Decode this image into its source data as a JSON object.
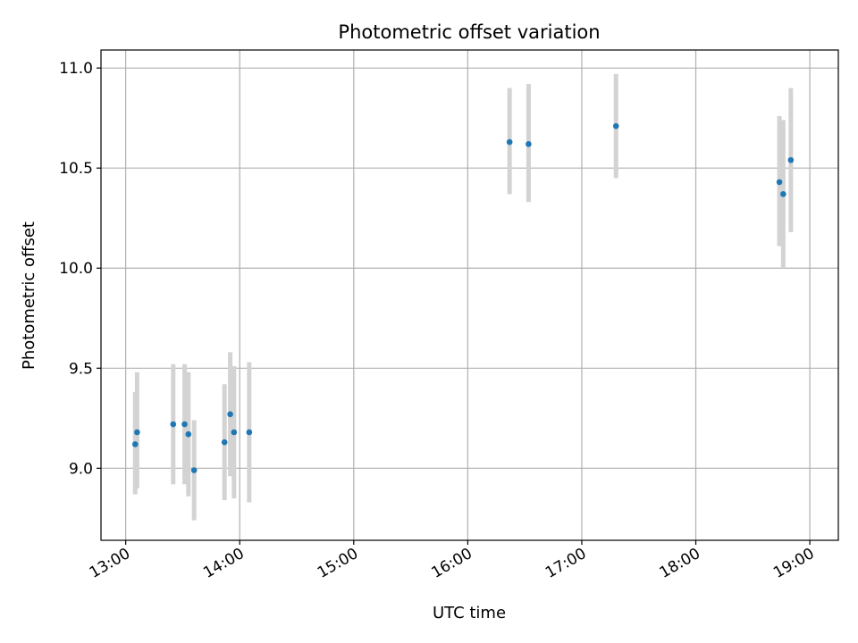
{
  "chart_data": {
    "type": "scatter",
    "title": "Photometric offset variation",
    "xlabel": "UTC time",
    "ylabel": "Photometric offset",
    "x_ticks": [
      "13:00",
      "14:00",
      "15:00",
      "16:00",
      "17:00",
      "18:00",
      "19:00"
    ],
    "y_ticks": [
      "9.0",
      "9.5",
      "10.0",
      "10.5",
      "11.0"
    ],
    "xlim": [
      "12:47",
      "19:15"
    ],
    "ylim": [
      8.64,
      11.09
    ],
    "grid": true,
    "error_bars": true,
    "series": [
      {
        "points": [
          {
            "x": "13:05",
            "y": 9.12,
            "ylow": 8.87,
            "yhigh": 9.38
          },
          {
            "x": "13:06",
            "y": 9.18,
            "ylow": 8.9,
            "yhigh": 9.48
          },
          {
            "x": "13:25",
            "y": 9.22,
            "ylow": 8.92,
            "yhigh": 9.52
          },
          {
            "x": "13:31",
            "y": 9.22,
            "ylow": 8.92,
            "yhigh": 9.52
          },
          {
            "x": "13:33",
            "y": 9.17,
            "ylow": 8.86,
            "yhigh": 9.48
          },
          {
            "x": "13:36",
            "y": 8.99,
            "ylow": 8.74,
            "yhigh": 9.24
          },
          {
            "x": "13:52",
            "y": 9.13,
            "ylow": 8.84,
            "yhigh": 9.42
          },
          {
            "x": "13:55",
            "y": 9.27,
            "ylow": 8.96,
            "yhigh": 9.58
          },
          {
            "x": "13:57",
            "y": 9.18,
            "ylow": 8.85,
            "yhigh": 9.51
          },
          {
            "x": "14:05",
            "y": 9.18,
            "ylow": 8.83,
            "yhigh": 9.53
          },
          {
            "x": "16:22",
            "y": 10.63,
            "ylow": 10.37,
            "yhigh": 10.9
          },
          {
            "x": "16:32",
            "y": 10.62,
            "ylow": 10.33,
            "yhigh": 10.92
          },
          {
            "x": "17:18",
            "y": 10.71,
            "ylow": 10.45,
            "yhigh": 10.97
          },
          {
            "x": "18:44",
            "y": 10.43,
            "ylow": 10.11,
            "yhigh": 10.76
          },
          {
            "x": "18:46",
            "y": 10.37,
            "ylow": 10.0,
            "yhigh": 10.74
          },
          {
            "x": "18:50",
            "y": 10.54,
            "ylow": 10.18,
            "yhigh": 10.9
          }
        ]
      }
    ]
  },
  "colors": {
    "point": "#1f77b4",
    "errorbar": "#d3d3d3",
    "grid": "#b0b0b0",
    "frame": "#000000"
  }
}
